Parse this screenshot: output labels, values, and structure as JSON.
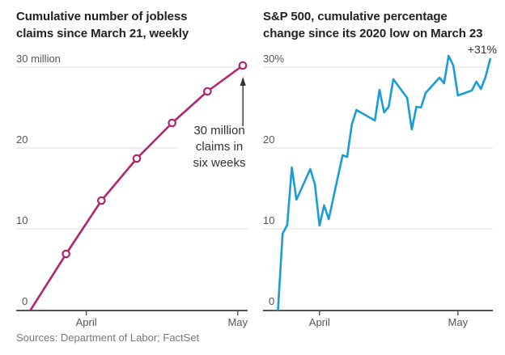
{
  "source_note": "Sources: Department of Labor; FactSet",
  "chart_data": [
    {
      "type": "line",
      "title": "Cumulative number of jobless\nclaims since March 21, weekly",
      "color": "#b2246e",
      "markers": true,
      "ylim": [
        0,
        31
      ],
      "y_ticks": [
        {
          "value": 0,
          "label": "0"
        },
        {
          "value": 10,
          "label": "10"
        },
        {
          "value": 20,
          "label": "20"
        },
        {
          "value": 30,
          "label": "30 million"
        }
      ],
      "x_ticks": [
        {
          "label": "April",
          "day": 11
        },
        {
          "label": "May",
          "day": 41
        }
      ],
      "points": [
        {
          "day": 0,
          "value": 0
        },
        {
          "day": 7,
          "value": 6.9
        },
        {
          "day": 14,
          "value": 13.5
        },
        {
          "day": 21,
          "value": 18.7
        },
        {
          "day": 28,
          "value": 23.1
        },
        {
          "day": 35,
          "value": 27.0
        },
        {
          "day": 42,
          "value": 30.2
        }
      ],
      "annotation": {
        "text": "30 million\nclaims in\nsix weeks"
      }
    },
    {
      "type": "line",
      "title": "S&P 500, cumulative percentage\nchange since its 2020 low on March 23",
      "color": "#1a9cd8",
      "markers": false,
      "ylim": [
        0,
        32
      ],
      "end_label": "+31%",
      "y_ticks": [
        {
          "value": 0,
          "label": "0"
        },
        {
          "value": 10,
          "label": "10"
        },
        {
          "value": 20,
          "label": "20"
        },
        {
          "value": 30,
          "label": "30%"
        }
      ],
      "x_ticks": [
        {
          "label": "April",
          "day": 9
        },
        {
          "label": "May",
          "day": 39
        }
      ],
      "points": [
        {
          "day": 0,
          "value": 0
        },
        {
          "day": 1,
          "value": 9.4
        },
        {
          "day": 2,
          "value": 10.5
        },
        {
          "day": 3,
          "value": 17.6
        },
        {
          "day": 4,
          "value": 13.6
        },
        {
          "day": 7,
          "value": 17.4
        },
        {
          "day": 8,
          "value": 15.5
        },
        {
          "day": 9,
          "value": 10.4
        },
        {
          "day": 10,
          "value": 12.9
        },
        {
          "day": 11,
          "value": 11.2
        },
        {
          "day": 14,
          "value": 19.1
        },
        {
          "day": 15,
          "value": 18.9
        },
        {
          "day": 16,
          "value": 22.9
        },
        {
          "day": 17,
          "value": 24.7
        },
        {
          "day": 21,
          "value": 23.4
        },
        {
          "day": 22,
          "value": 27.2
        },
        {
          "day": 23,
          "value": 24.4
        },
        {
          "day": 24,
          "value": 25.1
        },
        {
          "day": 25,
          "value": 28.5
        },
        {
          "day": 28,
          "value": 26.2
        },
        {
          "day": 29,
          "value": 22.3
        },
        {
          "day": 30,
          "value": 25.1
        },
        {
          "day": 31,
          "value": 25.0
        },
        {
          "day": 32,
          "value": 26.8
        },
        {
          "day": 35,
          "value": 28.7
        },
        {
          "day": 36,
          "value": 28.0
        },
        {
          "day": 37,
          "value": 31.4
        },
        {
          "day": 38,
          "value": 30.2
        },
        {
          "day": 39,
          "value": 26.5
        },
        {
          "day": 42,
          "value": 27.1
        },
        {
          "day": 43,
          "value": 28.2
        },
        {
          "day": 44,
          "value": 27.3
        },
        {
          "day": 45,
          "value": 28.8
        },
        {
          "day": 46,
          "value": 31.0
        }
      ]
    }
  ]
}
